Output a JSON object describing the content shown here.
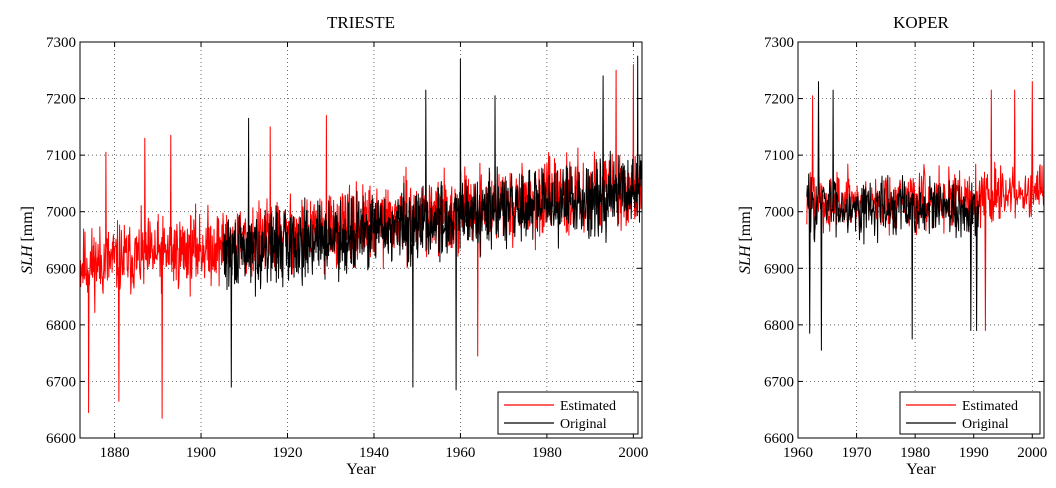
{
  "colors": {
    "estimated": "#ff0000",
    "original": "#000000"
  },
  "chart_data": [
    {
      "type": "line",
      "title": "TRIESTE",
      "xlabel": "Year",
      "ylabel_italic": "SLH",
      "ylabel_unit": " [mm]",
      "xlim": [
        1872,
        2002
      ],
      "ylim": [
        6600,
        7300
      ],
      "xticks": [
        1880,
        1900,
        1920,
        1940,
        1960,
        1980,
        2000
      ],
      "yticks": [
        6600,
        6700,
        6800,
        6900,
        7000,
        7100,
        7200,
        7300
      ],
      "grid": true,
      "legend_position": "bottom-right",
      "series": [
        {
          "name": "Estimated",
          "x_start": 1872,
          "x_end": 2002,
          "mean_start": 6905,
          "mean_end": 7045,
          "amplitude": 95,
          "seed": 11,
          "extremes": [
            [
              1874,
              6645
            ],
            [
              1881,
              6665
            ],
            [
              1891,
              6635
            ],
            [
              1878,
              7105
            ],
            [
              1887,
              7130
            ],
            [
              1893,
              7135
            ],
            [
              1916,
              7150
            ],
            [
              1929,
              7170
            ],
            [
              1964,
              6745
            ],
            [
              1996,
              7250
            ],
            [
              2000,
              7260
            ]
          ]
        },
        {
          "name": "Original",
          "x_start": 1905,
          "x_end": 2002,
          "mean_start": 6925,
          "mean_end": 7040,
          "amplitude": 95,
          "seed": 29,
          "extremes": [
            [
              1907,
              6690
            ],
            [
              1911,
              7165
            ],
            [
              1949,
              6690
            ],
            [
              1952,
              7215
            ],
            [
              1959,
              6685
            ],
            [
              1960,
              7270
            ],
            [
              1968,
              7205
            ],
            [
              1993,
              7240
            ],
            [
              2001,
              7275
            ]
          ]
        }
      ]
    },
    {
      "type": "line",
      "title": "KOPER",
      "xlabel": "Year",
      "ylabel_italic": "SLH",
      "ylabel_unit": " [mm]",
      "xlim": [
        1960,
        2002
      ],
      "ylim": [
        6600,
        7300
      ],
      "xticks": [
        1960,
        1970,
        1980,
        1990,
        2000
      ],
      "yticks": [
        6600,
        6700,
        6800,
        6900,
        7000,
        7100,
        7200,
        7300
      ],
      "grid": true,
      "legend_position": "bottom-right",
      "series": [
        {
          "name": "Estimated",
          "x_start": 1961.5,
          "x_end": 2002,
          "mean_start": 7015,
          "mean_end": 7030,
          "amplitude": 80,
          "seed": 47,
          "extremes": [
            [
              1962.5,
              7205
            ],
            [
              1992,
              6790
            ],
            [
              1993,
              7215
            ],
            [
              1997,
              7215
            ],
            [
              2000,
              7230
            ]
          ]
        },
        {
          "name": "Original",
          "x_start": 1961.5,
          "x_end": 1991,
          "mean_start": 7015,
          "mean_end": 7000,
          "amplitude": 75,
          "seed": 83,
          "extremes": [
            [
              1962,
              6785
            ],
            [
              1963.5,
              7230
            ],
            [
              1964,
              6755
            ],
            [
              1966,
              7215
            ],
            [
              1979.5,
              6775
            ],
            [
              1989.5,
              6790
            ],
            [
              1990.5,
              6790
            ]
          ]
        }
      ]
    }
  ]
}
